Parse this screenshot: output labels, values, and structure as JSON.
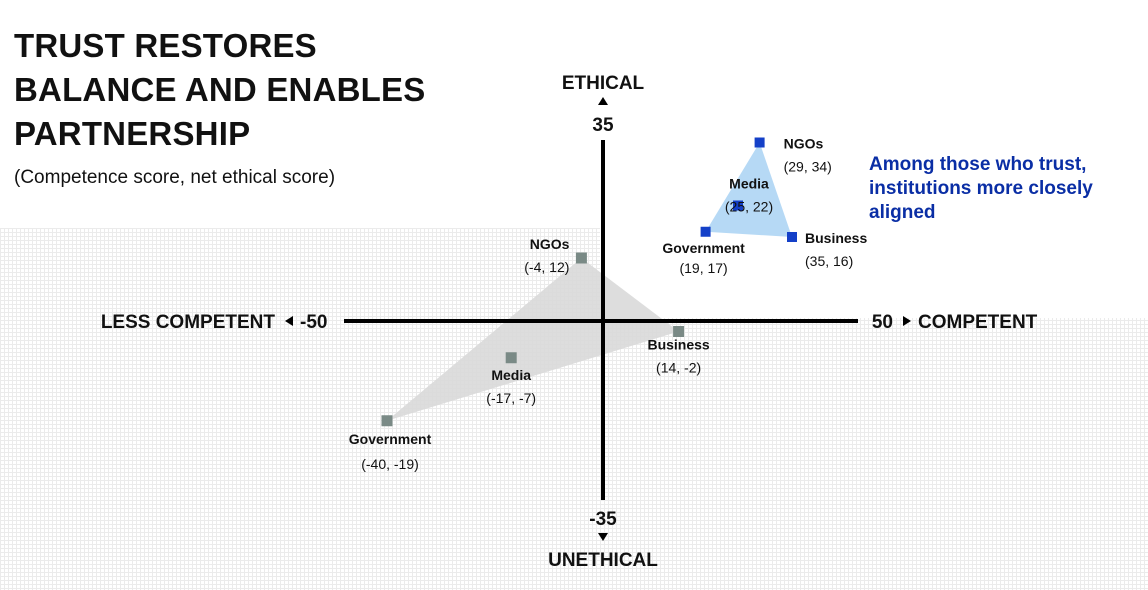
{
  "title_lines": [
    "TRUST RESTORES",
    "BALANCE AND ENABLES",
    "PARTNERSHIP"
  ],
  "subtitle": "(Competence score, net ethical score)",
  "annotation": "Among those who trust, institutions more closely aligned",
  "colors": {
    "general_point": "#7a8a86",
    "general_fill": "#d9d9d9",
    "trust_point": "#1440c8",
    "trust_fill": "#a9d2f3",
    "annotation": "#0a2ea5"
  },
  "chart_data": {
    "type": "scatter",
    "xlim": [
      -50,
      50
    ],
    "ylim": [
      -35,
      35
    ],
    "x_axis": {
      "min_label": "-50",
      "max_label": "50",
      "neg_label": "LESS COMPETENT",
      "pos_label": "COMPETENT"
    },
    "y_axis": {
      "min_label": "-35",
      "max_label": "35",
      "neg_label": "UNETHICAL",
      "pos_label": "ETHICAL"
    },
    "series": [
      {
        "points": [
          {
            "label": "NGOs",
            "value_text": "(-4, 12)",
            "x": -4,
            "y": 12
          },
          {
            "label": "Business",
            "value_text": "(14, -2)",
            "x": 14,
            "y": -2
          },
          {
            "label": "Media",
            "value_text": "(-17, -7)",
            "x": -17,
            "y": -7
          },
          {
            "label": "Government",
            "value_text": "(-40, -19)",
            "x": -40,
            "y": -19
          }
        ],
        "hull": [
          "NGOs",
          "Business",
          "Government"
        ]
      },
      {
        "points": [
          {
            "label": "NGOs",
            "value_text": "(29, 34)",
            "x": 29,
            "y": 34
          },
          {
            "label": "Media",
            "value_text": "(25, 22)",
            "x": 25,
            "y": 22
          },
          {
            "label": "Government",
            "value_text": "(19, 17)",
            "x": 19,
            "y": 17
          },
          {
            "label": "Business",
            "value_text": "(35, 16)",
            "x": 35,
            "y": 16
          }
        ],
        "hull": [
          "NGOs",
          "Business",
          "Government"
        ]
      }
    ]
  }
}
